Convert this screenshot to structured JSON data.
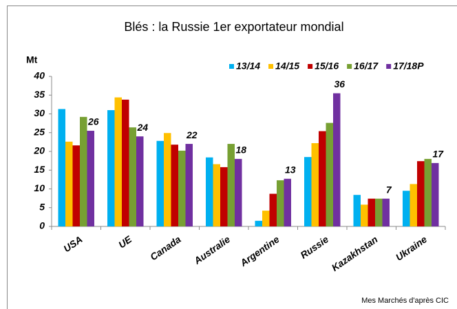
{
  "chart_data": {
    "type": "bar",
    "title": "Blés : la Russie 1er exportateur mondial",
    "y_label": "Mt",
    "source": "Mes Marchés d'après CIC",
    "categories": [
      "USA",
      "UE",
      "Canada",
      "Australie",
      "Argentine",
      "Russie",
      "Kazakhstan",
      "Ukraine"
    ],
    "series": [
      {
        "name": "13/14",
        "color": "#00b0f0",
        "values": [
          31.3,
          31,
          22.8,
          18.4,
          1.5,
          18.5,
          8.4,
          9.5
        ]
      },
      {
        "name": "14/15",
        "color": "#ffc000",
        "values": [
          22.6,
          34.4,
          24.9,
          16.6,
          4.2,
          22.2,
          5.8,
          11.3
        ]
      },
      {
        "name": "15/16",
        "color": "#c00000",
        "values": [
          21.6,
          33.8,
          21.8,
          15.8,
          8.7,
          25.4,
          7.4,
          17.4
        ]
      },
      {
        "name": "16/17",
        "color": "#77a033",
        "values": [
          29.2,
          26.4,
          20.2,
          22,
          12.3,
          27.6,
          7.4,
          18
        ]
      },
      {
        "name": "17/18P",
        "color": "#7030a0",
        "values": [
          25.5,
          24,
          22,
          18,
          12.7,
          35.5,
          7.4,
          16.9
        ],
        "value_labels": [
          "26",
          "24",
          "22",
          "18",
          "13",
          "36",
          "7",
          "17"
        ]
      }
    ],
    "ylim": [
      0,
      40
    ],
    "yticks": [
      0,
      5,
      10,
      15,
      20,
      25,
      30,
      35,
      40
    ],
    "grid": false,
    "legend": "top-right"
  }
}
